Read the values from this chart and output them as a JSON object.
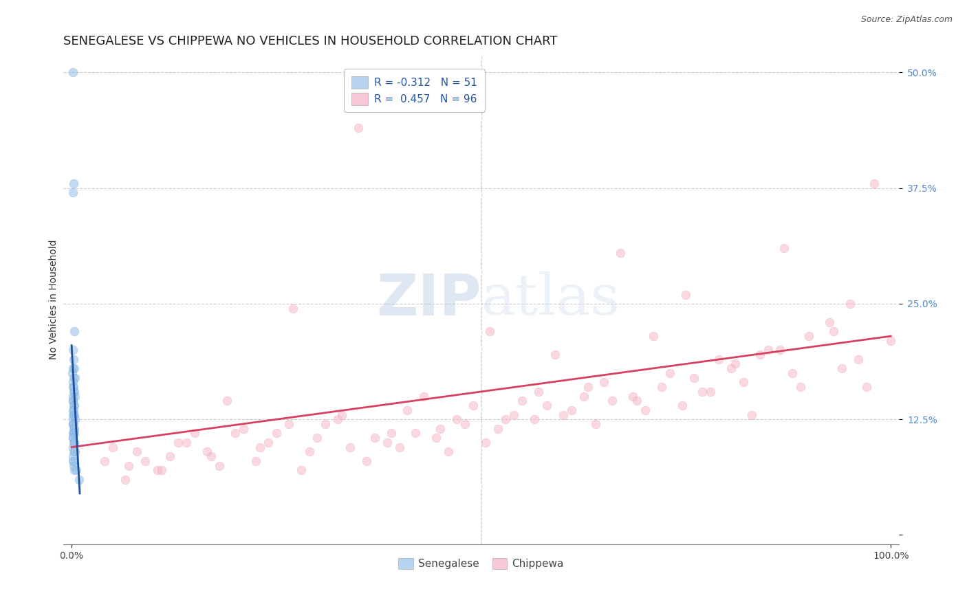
{
  "title": "SENEGALESE VS CHIPPEWA NO VEHICLES IN HOUSEHOLD CORRELATION CHART",
  "source": "Source: ZipAtlas.com",
  "ylabel": "No Vehicles in Household",
  "xlim": [
    -1,
    101
  ],
  "ylim": [
    -1,
    52
  ],
  "ytick_positions": [
    0,
    12.5,
    25,
    37.5,
    50
  ],
  "ytick_labels": [
    "",
    "12.5%",
    "25.0%",
    "37.5%",
    "50.0%"
  ],
  "watermark_text": "ZIPatlas",
  "senegalese_color": "#92bfe8",
  "chippewa_color": "#f5b8c8",
  "senegalese_edge": "#6a9fd8",
  "chippewa_edge": "#e890a8",
  "blue_line_color": "#1a4fa0",
  "pink_line_color": "#d84060",
  "background_color": "#ffffff",
  "grid_color": "#cccccc",
  "legend_blue_face": "#b8d4f0",
  "legend_pink_face": "#f8c8d8",
  "senegalese_R": -0.312,
  "senegalese_N": 51,
  "chippewa_R": 0.457,
  "chippewa_N": 96,
  "marker_size": 85,
  "marker_alpha": 0.55,
  "title_fontsize": 13,
  "axis_label_fontsize": 10,
  "tick_fontsize": 10,
  "legend_fontsize": 11,
  "watermark_fontsize": 60,
  "senegalese_x": [
    0.15,
    0.22,
    0.18,
    0.3,
    0.12,
    0.25,
    0.2,
    0.35,
    0.1,
    0.28,
    0.4,
    0.15,
    0.22,
    0.18,
    0.32,
    0.26,
    0.14,
    0.38,
    0.2,
    0.16,
    0.24,
    0.3,
    0.18,
    0.22,
    0.28,
    0.35,
    0.12,
    0.4,
    0.2,
    0.15,
    0.25,
    0.18,
    0.3,
    0.22,
    0.16,
    0.28,
    0.35,
    0.2,
    0.14,
    0.26,
    0.32,
    0.18,
    0.24,
    0.38,
    0.2,
    0.15,
    0.28,
    0.22,
    0.3,
    0.6,
    0.9
  ],
  "senegalese_y": [
    50.0,
    38.0,
    37.0,
    22.0,
    20.0,
    19.0,
    18.0,
    18.0,
    17.5,
    17.0,
    17.0,
    16.5,
    16.0,
    16.0,
    15.5,
    15.5,
    15.0,
    15.0,
    14.5,
    14.5,
    14.0,
    14.0,
    13.5,
    13.5,
    13.0,
    13.0,
    13.0,
    12.5,
    12.5,
    12.0,
    12.0,
    12.0,
    11.5,
    11.5,
    11.0,
    11.0,
    11.0,
    10.5,
    10.5,
    10.0,
    10.0,
    9.5,
    9.0,
    9.0,
    8.5,
    8.0,
    8.0,
    7.5,
    7.0,
    7.0,
    6.0
  ],
  "chippewa_x": [
    4.0,
    6.5,
    8.0,
    10.5,
    12.0,
    14.0,
    16.5,
    18.0,
    20.0,
    22.5,
    24.0,
    26.5,
    28.0,
    30.0,
    32.5,
    34.0,
    36.0,
    38.5,
    40.0,
    42.0,
    44.5,
    46.0,
    48.0,
    50.5,
    52.0,
    54.0,
    56.5,
    58.0,
    60.0,
    62.5,
    64.0,
    66.0,
    68.5,
    70.0,
    72.0,
    74.5,
    76.0,
    78.0,
    80.5,
    82.0,
    84.0,
    86.5,
    88.0,
    90.0,
    92.5,
    94.0,
    96.0,
    98.0,
    100.0,
    5.0,
    9.0,
    13.0,
    17.0,
    21.0,
    25.0,
    29.0,
    33.0,
    37.0,
    41.0,
    45.0,
    49.0,
    53.0,
    57.0,
    61.0,
    65.0,
    69.0,
    73.0,
    77.0,
    81.0,
    85.0,
    89.0,
    93.0,
    97.0,
    7.0,
    15.0,
    23.0,
    31.0,
    39.0,
    47.0,
    55.0,
    63.0,
    71.0,
    79.0,
    87.0,
    95.0,
    11.0,
    19.0,
    27.0,
    35.0,
    43.0,
    51.0,
    59.0,
    67.0,
    75.0,
    83.0
  ],
  "chippewa_y": [
    8.0,
    6.0,
    9.0,
    7.0,
    8.5,
    10.0,
    9.0,
    7.5,
    11.0,
    8.0,
    10.0,
    12.0,
    7.0,
    10.5,
    12.5,
    9.5,
    8.0,
    10.0,
    9.5,
    11.0,
    10.5,
    9.0,
    12.0,
    10.0,
    11.5,
    13.0,
    12.5,
    14.0,
    13.0,
    15.0,
    12.0,
    14.5,
    15.0,
    13.5,
    16.0,
    14.0,
    17.0,
    15.5,
    18.0,
    16.5,
    19.5,
    20.0,
    17.5,
    21.5,
    23.0,
    18.0,
    19.0,
    38.0,
    21.0,
    9.5,
    8.0,
    10.0,
    8.5,
    11.5,
    11.0,
    9.0,
    13.0,
    10.5,
    13.5,
    11.5,
    14.0,
    12.5,
    15.5,
    13.5,
    16.5,
    14.5,
    17.5,
    15.5,
    18.5,
    20.0,
    16.0,
    22.0,
    16.0,
    7.5,
    11.0,
    9.5,
    12.0,
    11.0,
    12.5,
    14.5,
    16.0,
    21.5,
    19.0,
    31.0,
    25.0,
    7.0,
    14.5,
    24.5,
    44.0,
    15.0,
    22.0,
    19.5,
    30.5,
    26.0,
    13.0
  ],
  "blue_line_x": [
    0.0,
    1.0
  ],
  "blue_line_y": [
    20.5,
    4.5
  ],
  "pink_line_x": [
    0.0,
    100.0
  ],
  "pink_line_y": [
    9.5,
    21.5
  ]
}
